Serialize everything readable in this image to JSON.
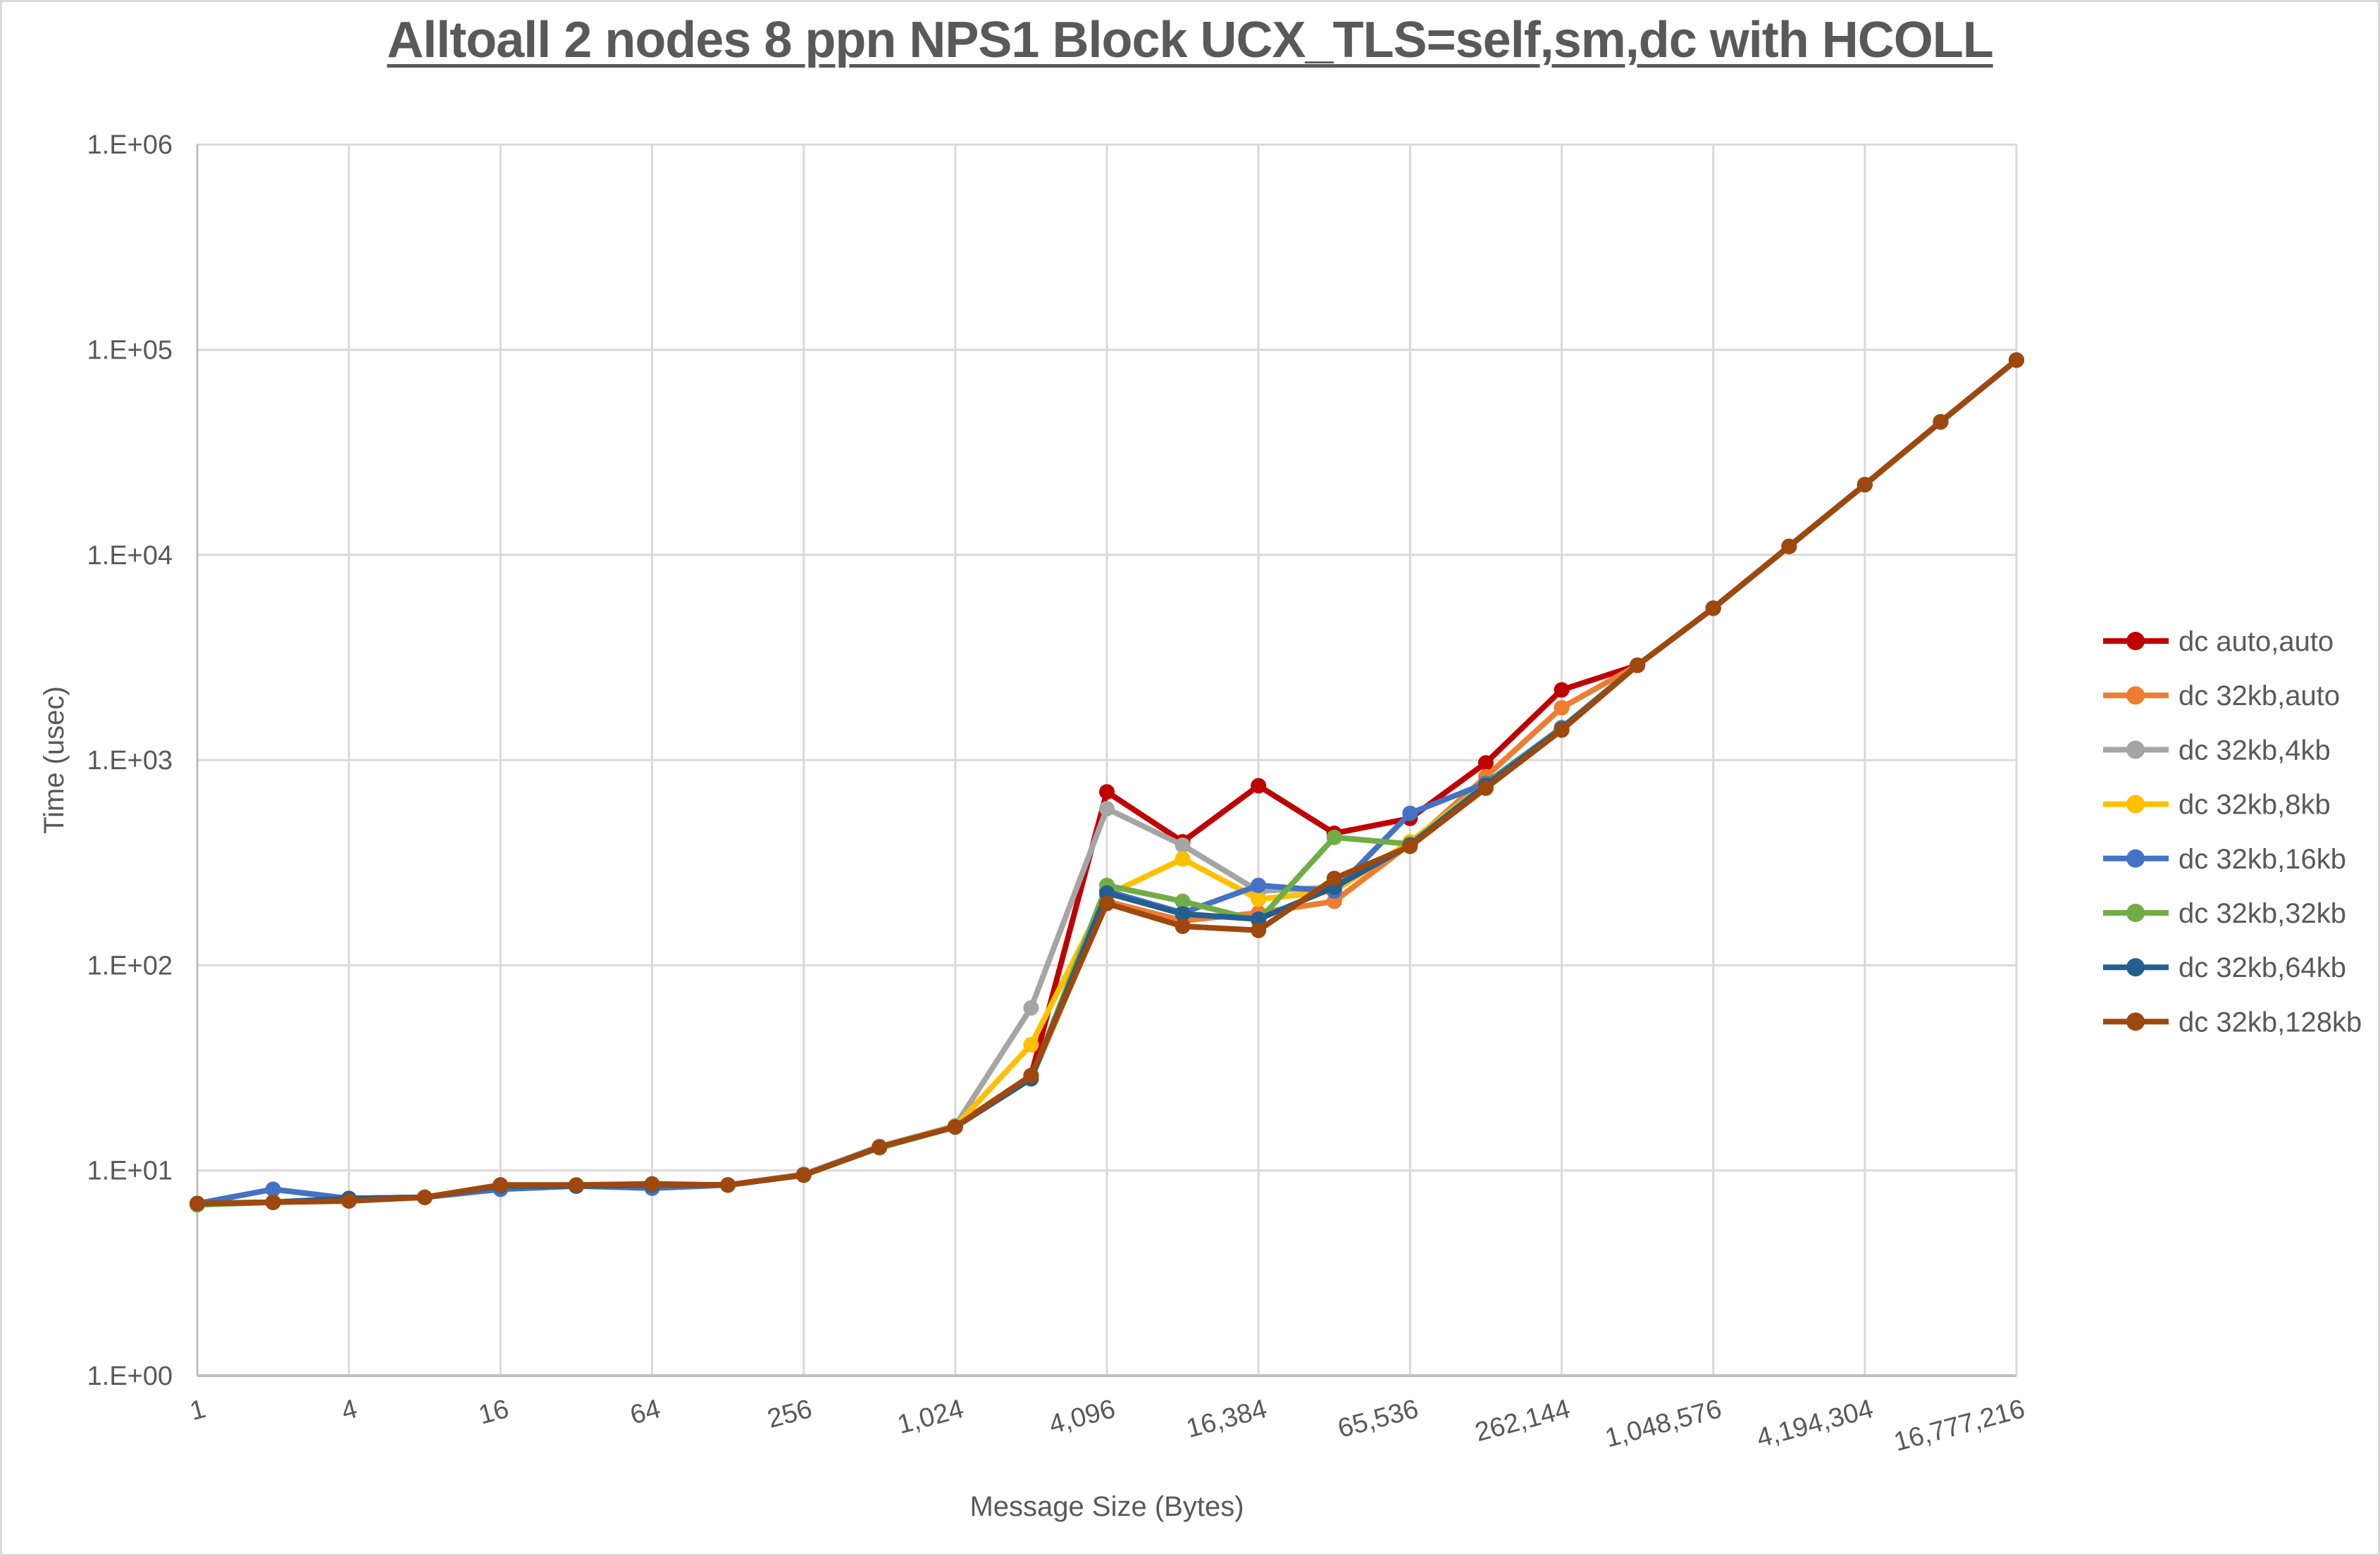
{
  "title": "Alltoall 2 nodes 8 ppn NPS1 Block UCX_TLS=self,sm,dc with HCOLL",
  "chart_data": {
    "type": "line",
    "title": "Alltoall 2 nodes 8 ppn NPS1 Block UCX_TLS=self,sm,dc with HCOLL",
    "xlabel": "Message Size (Bytes)",
    "ylabel": "Time (usec)",
    "x_scale": "log2_categories",
    "y_scale": "log10",
    "ylim": [
      1,
      1000000
    ],
    "grid": true,
    "legend_position": "right",
    "y_tick_labels": [
      "1.E+00",
      "1.E+01",
      "1.E+02",
      "1.E+03",
      "1.E+04",
      "1.E+05",
      "1.E+06"
    ],
    "x_tick_labels": [
      "1",
      "4",
      "16",
      "64",
      "256",
      "1,024",
      "4,096",
      "16,384",
      "65,536",
      "262,144",
      "1,048,576",
      "4,194,304",
      "16,777,216"
    ],
    "categories": [
      1,
      2,
      4,
      8,
      16,
      32,
      64,
      128,
      256,
      512,
      1024,
      2048,
      4096,
      8192,
      16384,
      32768,
      65536,
      131072,
      262144,
      524288,
      1048576,
      2097152,
      4194304,
      8388608,
      16777216
    ],
    "series": [
      {
        "name": "dc auto,auto",
        "color": "#C00000",
        "values": [
          6.9,
          7.0,
          7.3,
          7.4,
          8.5,
          8.4,
          8.5,
          8.5,
          9.5,
          13.0,
          16.4,
          29,
          700,
          400,
          750,
          440,
          520,
          970,
          2200,
          2900,
          5500,
          11000,
          22000,
          44500,
          89000
        ]
      },
      {
        "name": "dc 32kb,auto",
        "color": "#ED7D31",
        "values": [
          6.9,
          7.0,
          7.3,
          7.4,
          8.4,
          8.4,
          8.5,
          8.5,
          9.5,
          13.0,
          16.3,
          28,
          205,
          165,
          180,
          205,
          390,
          830,
          1800,
          2900,
          5500,
          11000,
          22000,
          44500,
          89000
        ]
      },
      {
        "name": "dc 32kb,4kb",
        "color": "#A5A5A5",
        "values": [
          6.9,
          7.0,
          7.3,
          7.4,
          8.4,
          8.4,
          8.5,
          8.5,
          9.6,
          13.1,
          16.5,
          62,
          580,
          385,
          230,
          240,
          395,
          760,
          1430,
          2900,
          5500,
          11000,
          22000,
          44500,
          89000
        ]
      },
      {
        "name": "dc 32kb,8kb",
        "color": "#FFC000",
        "values": [
          6.9,
          7.0,
          7.3,
          7.4,
          8.4,
          8.4,
          8.5,
          8.5,
          9.5,
          13.0,
          16.4,
          41,
          220,
          330,
          210,
          230,
          400,
          765,
          1430,
          2900,
          5500,
          11000,
          22000,
          44500,
          89000
        ]
      },
      {
        "name": "dc 32kb,16kb",
        "color": "#4472C4",
        "values": [
          6.9,
          8.1,
          7.3,
          7.4,
          8.1,
          8.4,
          8.2,
          8.5,
          9.5,
          13.0,
          16.3,
          28,
          230,
          180,
          245,
          230,
          550,
          770,
          1440,
          2900,
          5500,
          11000,
          22000,
          44500,
          89000
        ]
      },
      {
        "name": "dc 32kb,32kb",
        "color": "#70AD47",
        "values": [
          6.8,
          7.0,
          7.2,
          7.4,
          8.4,
          8.4,
          8.5,
          8.5,
          9.5,
          12.9,
          16.3,
          28,
          245,
          205,
          165,
          420,
          390,
          760,
          1430,
          2900,
          5500,
          11000,
          22000,
          44500,
          89000
        ]
      },
      {
        "name": "dc 32kb,64kb",
        "color": "#255E91",
        "values": [
          6.9,
          7.0,
          7.3,
          7.4,
          8.4,
          8.4,
          8.5,
          8.5,
          9.5,
          13.0,
          16.3,
          28,
          225,
          178,
          168,
          240,
          385,
          755,
          1420,
          2900,
          5500,
          11000,
          22000,
          44500,
          89000
        ]
      },
      {
        "name": "dc 32kb,128kb",
        "color": "#9E480E",
        "values": [
          6.9,
          7.0,
          7.1,
          7.4,
          8.5,
          8.5,
          8.6,
          8.5,
          9.5,
          13.0,
          16.3,
          29,
          200,
          155,
          148,
          265,
          380,
          730,
          1400,
          2900,
          5500,
          11000,
          22000,
          44500,
          89000
        ]
      }
    ],
    "colors": {
      "grid": "#D9D9D9",
      "axis": "#BFBFBF",
      "text": "#595959"
    }
  }
}
